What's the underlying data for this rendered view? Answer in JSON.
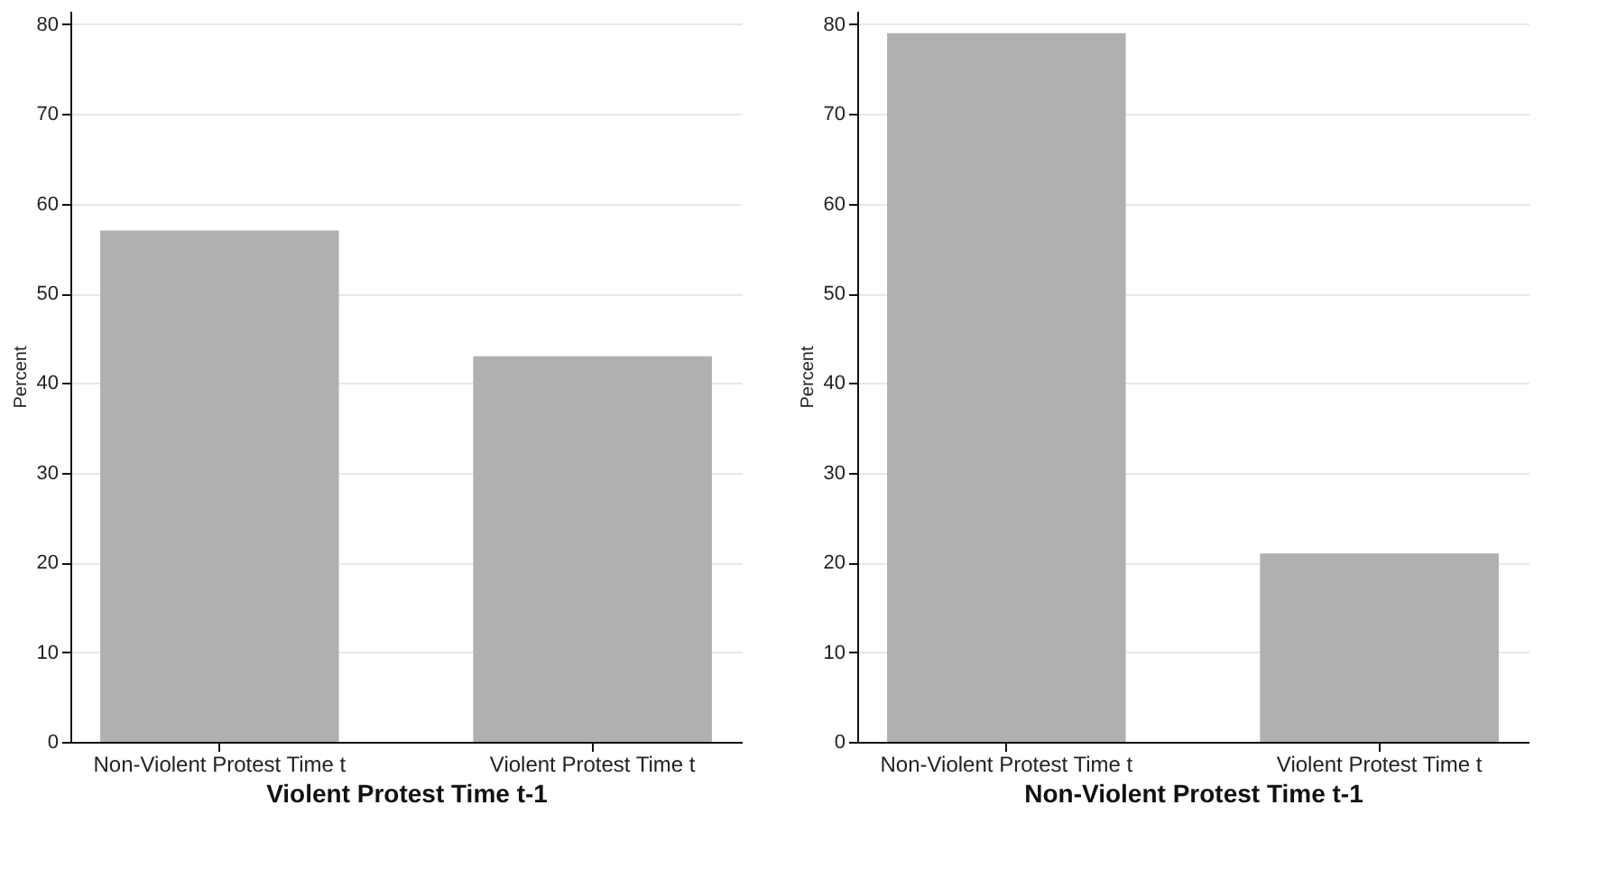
{
  "chart_data": [
    {
      "type": "bar",
      "categories": [
        "Non-Violent Protest Time t",
        "Violent Protest Time t"
      ],
      "values": [
        57,
        43
      ],
      "color": "#b0b0b0",
      "xlabel": "Violent Protest Time t-1",
      "ylabel": "Percent",
      "ylim": [
        0,
        81.5
      ],
      "yticks": [
        0,
        10,
        20,
        30,
        40,
        50,
        60,
        70,
        80
      ],
      "grid": "y"
    },
    {
      "type": "bar",
      "categories": [
        "Non-Violent Protest Time t",
        "Violent Protest Time t"
      ],
      "values": [
        79,
        21
      ],
      "color": "#b0b0b0",
      "xlabel": "Non-Violent Protest Time t-1",
      "ylabel": "Percent",
      "ylim": [
        0,
        81.5
      ],
      "yticks": [
        0,
        10,
        20,
        30,
        40,
        50,
        60,
        70,
        80
      ],
      "grid": "y"
    }
  ]
}
